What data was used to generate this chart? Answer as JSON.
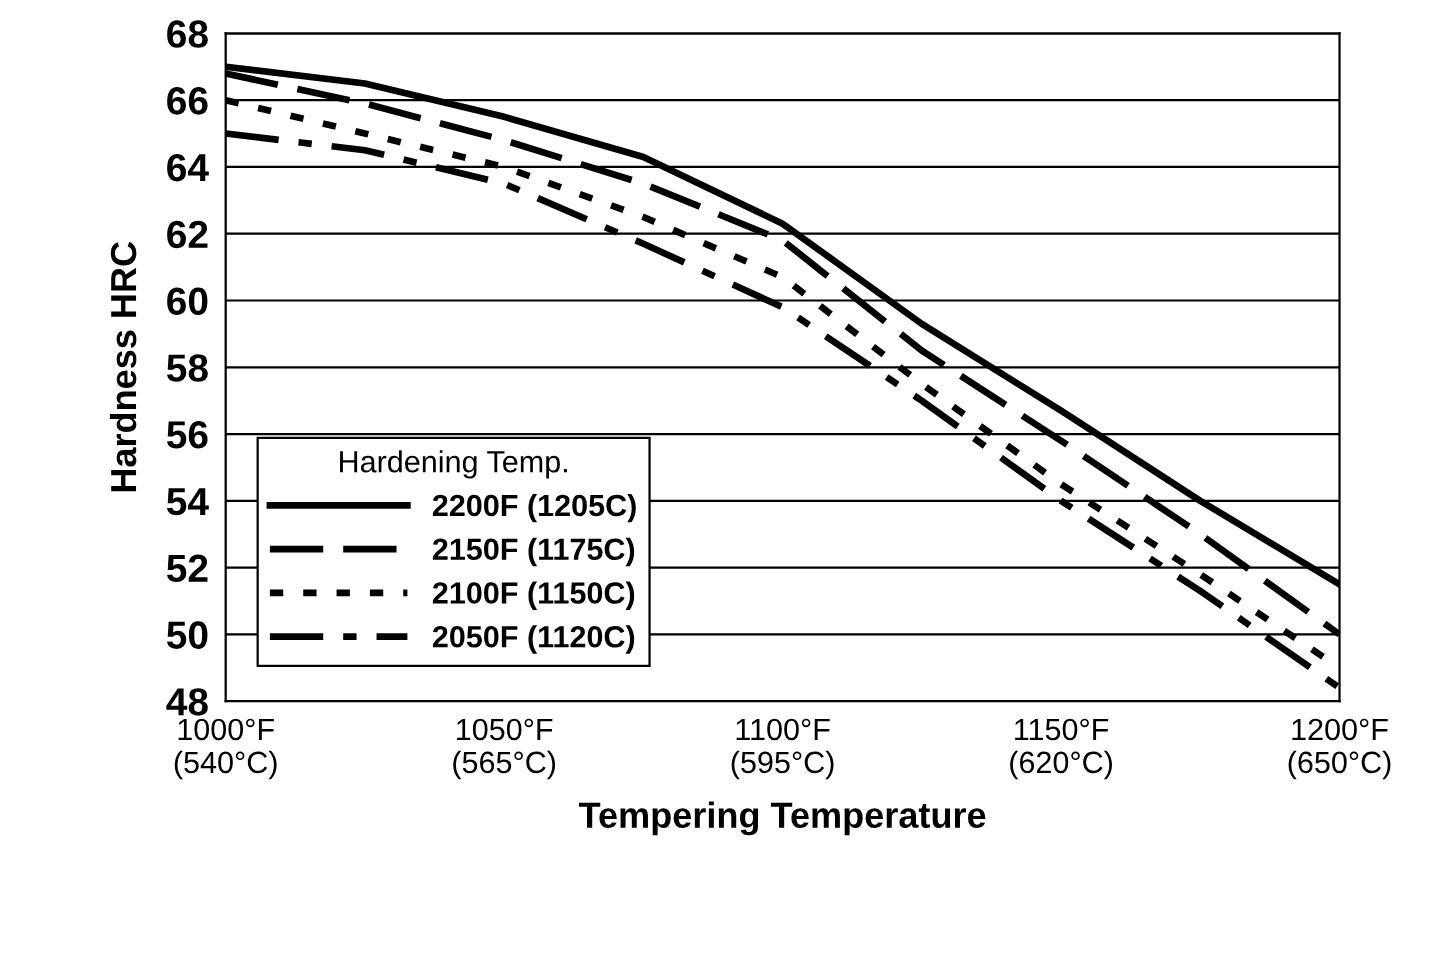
{
  "chart_data": {
    "type": "line",
    "xlabel": "Tempering Temperature",
    "ylabel": "Hardness HRC",
    "legend_title": "Hardening Temp.",
    "legend": "bottom left",
    "grid": "y",
    "marker": "none",
    "categories": [
      "1000°F\n(540°C)",
      null,
      "1050°F\n(565°C)",
      null,
      "1100°F\n(595°C)",
      null,
      "1150°F\n(620°C)",
      null,
      "1200°F\n(650°C)"
    ],
    "ylim": [
      48,
      68
    ],
    "yticks": [
      48,
      50,
      52,
      54,
      56,
      58,
      60,
      62,
      64,
      66,
      68
    ],
    "series": [
      {
        "name": "2200F (1205C)",
        "color": "#000000",
        "line_style": "solid",
        "values": [
          67,
          66.5,
          65.5,
          64.3,
          62.3,
          59.3,
          56.7,
          54,
          51.5
        ]
      },
      {
        "name": "2150F (1175C)",
        "color": "#000000",
        "line_style": "dashed",
        "values": [
          66.8,
          65.9,
          64.8,
          63.5,
          61.8,
          58.5,
          55.8,
          53,
          50
        ]
      },
      {
        "name": "2100F (1150C)",
        "color": "#000000",
        "line_style": "dotted",
        "values": [
          66,
          65,
          64,
          62.5,
          60.7,
          57.5,
          54.5,
          51.8,
          49
        ]
      },
      {
        "name": "2050F (1120C)",
        "color": "#000000",
        "line_style": "dashdot",
        "values": [
          65,
          64.5,
          63.5,
          61.7,
          59.8,
          57,
          54,
          51.3,
          48.4
        ]
      }
    ]
  }
}
